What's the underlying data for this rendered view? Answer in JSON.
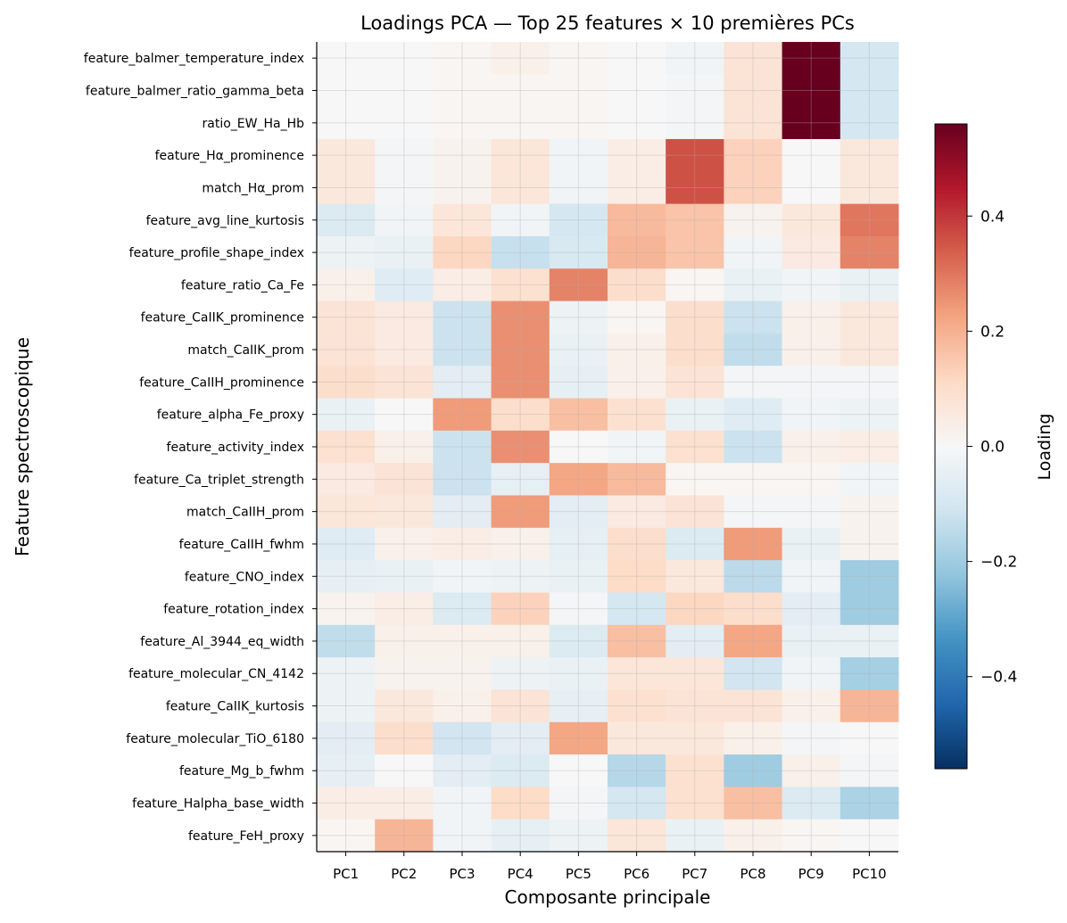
{
  "chart_data": {
    "type": "heatmap",
    "title": "Loadings PCA — Top 25 features × 10 premières PCs",
    "xlabel": "Composante principale",
    "ylabel": "Feature spectroscopique",
    "x_categories": [
      "PC1",
      "PC2",
      "PC3",
      "PC4",
      "PC5",
      "PC6",
      "PC7",
      "PC8",
      "PC9",
      "PC10"
    ],
    "y_categories": [
      "feature_balmer_temperature_index",
      "feature_balmer_ratio_gamma_beta",
      "ratio_EW_Ha_Hb",
      "feature_Hα_prominence",
      "match_Hα_prom",
      "feature_avg_line_kurtosis",
      "feature_profile_shape_index",
      "feature_ratio_Ca_Fe",
      "feature_CaIIK_prominence",
      "match_CaIIK_prom",
      "feature_CaIIH_prominence",
      "feature_alpha_Fe_proxy",
      "feature_activity_index",
      "feature_Ca_triplet_strength",
      "match_CaIIH_prom",
      "feature_CaIIH_fwhm",
      "feature_CNO_index",
      "feature_rotation_index",
      "feature_Al_3944_eq_width",
      "feature_molecular_CN_4142",
      "feature_CaIIK_kurtosis",
      "feature_molecular_TiO_6180",
      "feature_Mg_b_fwhm",
      "feature_Halpha_base_width",
      "feature_FeH_proxy"
    ],
    "values": [
      [
        0.0,
        0.0,
        0.01,
        0.03,
        0.01,
        0.0,
        -0.02,
        0.08,
        0.56,
        -0.1
      ],
      [
        0.0,
        0.0,
        0.01,
        0.01,
        0.01,
        0.0,
        -0.01,
        0.08,
        0.56,
        -0.1
      ],
      [
        0.0,
        0.0,
        0.01,
        0.01,
        0.01,
        0.0,
        -0.01,
        0.08,
        0.56,
        -0.1
      ],
      [
        0.06,
        -0.01,
        0.02,
        0.07,
        -0.02,
        0.04,
        0.36,
        0.13,
        0.0,
        0.06
      ],
      [
        0.06,
        -0.01,
        0.02,
        0.07,
        -0.02,
        0.04,
        0.36,
        0.13,
        0.0,
        0.06
      ],
      [
        -0.08,
        -0.02,
        0.07,
        -0.02,
        -0.1,
        0.18,
        0.16,
        0.02,
        0.06,
        0.3
      ],
      [
        -0.03,
        -0.04,
        0.12,
        -0.13,
        -0.09,
        0.19,
        0.16,
        -0.02,
        0.05,
        0.28
      ],
      [
        0.03,
        -0.07,
        0.04,
        0.09,
        0.28,
        0.1,
        0.01,
        -0.04,
        -0.02,
        -0.04
      ],
      [
        0.08,
        0.05,
        -0.12,
        0.26,
        -0.03,
        0.01,
        0.1,
        -0.12,
        0.03,
        0.06
      ],
      [
        0.08,
        0.05,
        -0.12,
        0.26,
        -0.04,
        0.03,
        0.1,
        -0.14,
        0.03,
        0.06
      ],
      [
        0.1,
        0.08,
        -0.06,
        0.26,
        -0.05,
        0.03,
        0.08,
        -0.01,
        -0.01,
        -0.01
      ],
      [
        -0.04,
        0.0,
        0.24,
        0.1,
        0.17,
        0.09,
        -0.04,
        -0.07,
        -0.02,
        -0.03
      ],
      [
        0.09,
        0.03,
        -0.12,
        0.26,
        0.0,
        -0.02,
        0.09,
        -0.12,
        0.03,
        0.04
      ],
      [
        0.05,
        0.08,
        -0.12,
        -0.05,
        0.22,
        0.18,
        0.01,
        0.01,
        0.01,
        -0.02
      ],
      [
        0.07,
        0.06,
        -0.06,
        0.24,
        -0.06,
        0.05,
        0.08,
        -0.01,
        -0.01,
        0.02
      ],
      [
        -0.07,
        0.03,
        0.04,
        0.03,
        -0.05,
        0.1,
        -0.08,
        0.24,
        -0.04,
        0.02
      ],
      [
        -0.05,
        -0.04,
        -0.02,
        -0.03,
        -0.04,
        0.11,
        0.06,
        -0.15,
        -0.02,
        -0.2
      ],
      [
        0.02,
        0.04,
        -0.08,
        0.13,
        -0.01,
        -0.1,
        0.12,
        0.1,
        -0.06,
        -0.2
      ],
      [
        -0.14,
        0.03,
        0.03,
        0.03,
        -0.08,
        0.17,
        -0.06,
        0.22,
        -0.04,
        -0.04
      ],
      [
        -0.03,
        0.02,
        0.02,
        -0.03,
        -0.04,
        0.07,
        0.07,
        -0.11,
        -0.02,
        -0.19
      ],
      [
        -0.03,
        0.06,
        0.03,
        0.08,
        -0.05,
        0.09,
        0.08,
        0.08,
        0.03,
        0.19
      ],
      [
        -0.06,
        0.1,
        -0.11,
        -0.06,
        0.22,
        0.06,
        0.06,
        0.03,
        -0.01,
        0.0
      ],
      [
        -0.05,
        0.0,
        -0.06,
        -0.08,
        0.0,
        -0.16,
        0.09,
        -0.2,
        0.03,
        -0.01
      ],
      [
        0.04,
        0.04,
        -0.02,
        0.11,
        -0.01,
        -0.1,
        0.09,
        0.17,
        -0.08,
        -0.18
      ],
      [
        0.01,
        0.19,
        -0.02,
        -0.05,
        -0.03,
        0.07,
        -0.04,
        0.03,
        0.01,
        0.0
      ]
    ],
    "colorscale": "RdBu_r",
    "vmin": -0.56,
    "vmax": 0.56,
    "colorbar_label": "Loading",
    "colorbar_ticks": [
      -0.4,
      -0.2,
      0.0,
      0.2,
      0.4
    ],
    "colorbar_tick_labels": [
      "−0.4",
      "−0.2",
      "0.0",
      "0.2",
      "0.4"
    ],
    "grid": true
  }
}
